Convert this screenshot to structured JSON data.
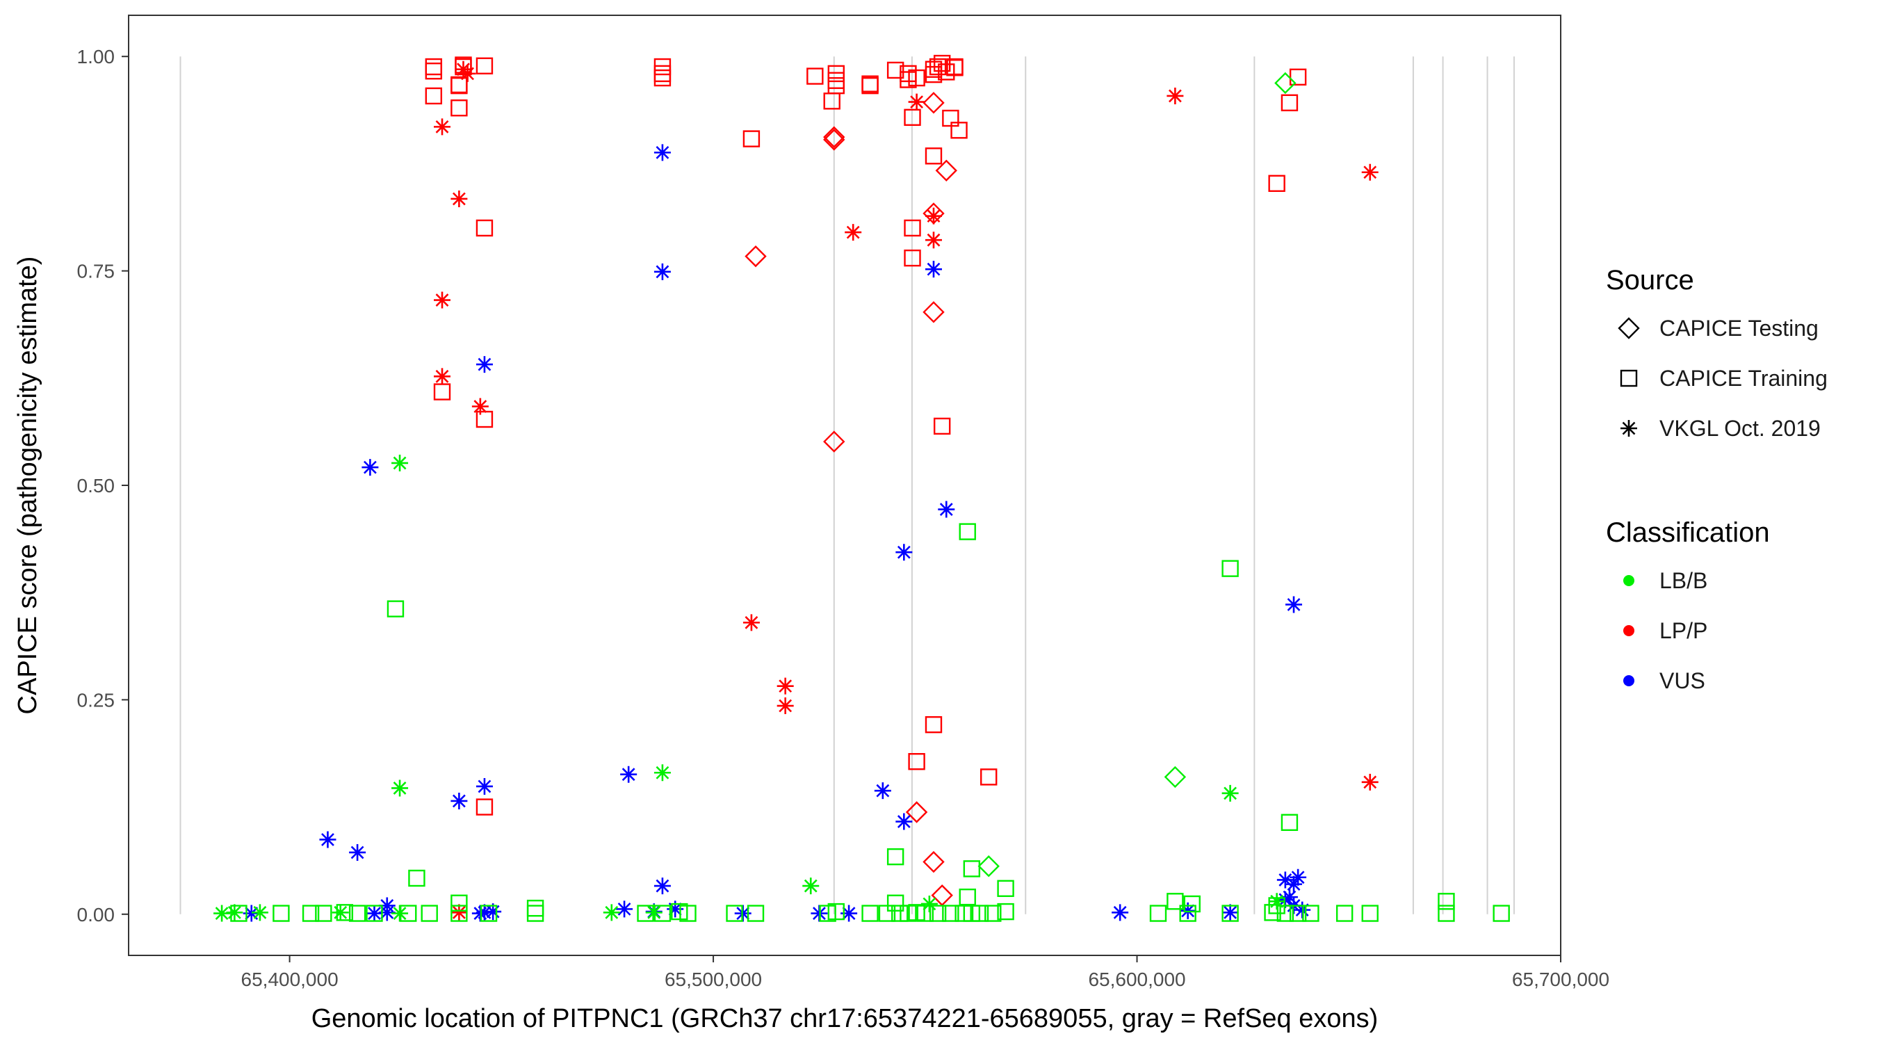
{
  "chart_data": {
    "type": "scatter",
    "title": "",
    "xlabel": "Genomic location of PITPNC1 (GRCh37 chr17:65374221-65689055, gray = RefSeq exons)",
    "ylabel": "CAPICE score (pathogenicity estimate)",
    "xlim": [
      65362000,
      65700000
    ],
    "ylim": [
      -0.048,
      1.048
    ],
    "x_ticks": [
      65400000,
      65500000,
      65600000,
      65700000
    ],
    "x_tick_labels": [
      "65,400,000",
      "65,500,000",
      "65,600,000",
      "65,700,000"
    ],
    "y_ticks": [
      0,
      0.25,
      0.5,
      0.75,
      1.0
    ],
    "y_tick_labels": [
      "0.00",
      "0.25",
      "0.50",
      "0.75",
      "1.00"
    ],
    "exon_lines": [
      65374221,
      65528500,
      65546900,
      65573700,
      65627700,
      65665200,
      65672200,
      65682700,
      65689000
    ],
    "grid": false,
    "legend": {
      "source": {
        "title": "Source",
        "entries": [
          {
            "key": "testing",
            "label": "CAPICE Testing",
            "shape": "diamond"
          },
          {
            "key": "training",
            "label": "CAPICE Training",
            "shape": "square"
          },
          {
            "key": "vkgl",
            "label": "VKGL Oct. 2019",
            "shape": "asterisk"
          }
        ]
      },
      "classification": {
        "title": "Classification",
        "entries": [
          {
            "key": "LB/B",
            "label": "LB/B",
            "color": "#00ee00"
          },
          {
            "key": "LP/P",
            "label": "LP/P",
            "color": "#ff0000"
          },
          {
            "key": "VUS",
            "label": "VUS",
            "color": "#0000ff"
          }
        ]
      }
    },
    "series": [
      {
        "name": "LP/P - CAPICE Training",
        "class": "LP/P",
        "source": "training",
        "x": [
          65434000,
          65440000,
          65441000,
          65446000,
          65434000,
          65434000,
          65440000,
          65440000,
          65446000,
          65436000,
          65446000,
          65441000,
          65488000,
          65488000,
          65488000,
          65509000,
          65524000,
          65529000,
          65529000,
          65529000,
          65528000,
          65537000,
          65537000,
          65543000,
          65546000,
          65546000,
          65548000,
          65553000,
          65554000,
          65555000,
          65557000,
          65557000,
          65552000,
          65552000,
          65556000,
          65558000,
          65547000,
          65552000,
          65547000,
          65547000,
          65554000,
          65552000,
          65548000,
          65565000,
          65636000,
          65638000,
          65633000,
          65446000
        ],
        "y": [
          0.988,
          0.966,
          0.988,
          0.989,
          0.954,
          0.983,
          0.967,
          0.94,
          0.8,
          0.609,
          0.577,
          0.99,
          0.988,
          0.98,
          0.975,
          0.904,
          0.977,
          0.98,
          0.972,
          0.966,
          0.948,
          0.968,
          0.966,
          0.984,
          0.98,
          0.973,
          0.975,
          0.988,
          0.992,
          0.982,
          0.988,
          0.987,
          0.979,
          0.985,
          0.928,
          0.914,
          0.929,
          0.884,
          0.8,
          0.765,
          0.569,
          0.221,
          0.178,
          0.16,
          0.946,
          0.976,
          0.852,
          0.125
        ]
      },
      {
        "name": "LP/P - VKGL Oct. 2019",
        "class": "LP/P",
        "source": "vkgl",
        "x": [
          65441000,
          65442000,
          65436000,
          65440000,
          65436000,
          65436000,
          65445000,
          65509000,
          65517000,
          65517000,
          65533000,
          65548000,
          65552000,
          65552000,
          65609000,
          65655000,
          65655000,
          65440000
        ],
        "y": [
          0.985,
          0.98,
          0.918,
          0.834,
          0.716,
          0.627,
          0.592,
          0.34,
          0.266,
          0.243,
          0.795,
          0.947,
          0.814,
          0.786,
          0.954,
          0.865,
          0.154,
          0.002
        ]
      },
      {
        "name": "LP/P - CAPICE Testing",
        "class": "LP/P",
        "source": "testing",
        "x": [
          65528500,
          65528500,
          65552000,
          65555000,
          65510000,
          65552000,
          65552000,
          65528500,
          65548000,
          65552000,
          65554000
        ],
        "y": [
          0.906,
          0.903,
          0.946,
          0.867,
          0.767,
          0.817,
          0.702,
          0.551,
          0.119,
          0.061,
          0.022
        ]
      },
      {
        "name": "VUS - VKGL Oct. 2019",
        "class": "VUS",
        "source": "vkgl",
        "x": [
          65488000,
          65488000,
          65552000,
          65446000,
          65419000,
          65555000,
          65545000,
          65637000,
          65480000,
          65446000,
          65440000,
          65540000,
          65545000,
          65409000,
          65416000,
          65488000,
          65423000,
          65635000,
          65638000,
          65637000,
          65635000,
          65636000,
          65391000,
          65420000,
          65423000,
          65446000,
          65448000,
          65445000,
          65479000,
          65486000,
          65491000,
          65507000,
          65525000,
          65532000,
          65596000,
          65612000,
          65622000,
          65639000,
          65637000
        ],
        "y": [
          0.888,
          0.749,
          0.752,
          0.641,
          0.521,
          0.472,
          0.422,
          0.361,
          0.163,
          0.149,
          0.132,
          0.144,
          0.108,
          0.087,
          0.072,
          0.033,
          0.01,
          0.04,
          0.043,
          0.035,
          0.017,
          0.02,
          0.001,
          0.001,
          0.002,
          0.002,
          0.003,
          0.001,
          0.006,
          0.003,
          0.006,
          0.001,
          0.001,
          0.001,
          0.002,
          0.004,
          0.002,
          0.005,
          0.01
        ]
      },
      {
        "name": "LB/B - VKGL Oct. 2019",
        "class": "LB/B",
        "source": "vkgl",
        "x": [
          65426000,
          65426000,
          65488000,
          65622000,
          65523000,
          65384000,
          65387000,
          65393000,
          65412000,
          65426000,
          65476000,
          65486000,
          65551000,
          65633000
        ],
        "y": [
          0.526,
          0.147,
          0.165,
          0.141,
          0.033,
          0.001,
          0.002,
          0.002,
          0.002,
          0.001,
          0.002,
          0.002,
          0.012,
          0.015
        ]
      },
      {
        "name": "LB/B - CAPICE Training",
        "class": "LB/B",
        "source": "training",
        "x": [
          65425000,
          65560000,
          65622000,
          65636000,
          65430000,
          65543000,
          65561000,
          65569000,
          65560000,
          65440000,
          65543000,
          65609000,
          65613000,
          65633000,
          65673000,
          65458000,
          65388000,
          65398000,
          65405000,
          65408000,
          65413000,
          65416000,
          65420000,
          65428000,
          65433000,
          65440000,
          65447000,
          65458000,
          65484000,
          65488000,
          65492000,
          65494000,
          65505000,
          65510000,
          65527000,
          65529000,
          65537000,
          65541000,
          65544000,
          65546000,
          65548000,
          65550000,
          65553000,
          65556000,
          65559000,
          65561000,
          65563000,
          65566000,
          65569000,
          65605000,
          65612000,
          65622000,
          65632000,
          65635000,
          65638000,
          65641000,
          65649000,
          65655000,
          65673000,
          65686000
        ],
        "y": [
          0.356,
          0.446,
          0.403,
          0.107,
          0.042,
          0.067,
          0.053,
          0.03,
          0.02,
          0.013,
          0.013,
          0.015,
          0.012,
          0.01,
          0.015,
          0.007,
          0.001,
          0.001,
          0.001,
          0.001,
          0.002,
          0.001,
          0.001,
          0.001,
          0.001,
          0.001,
          0.001,
          0.001,
          0.001,
          0.001,
          0.003,
          0.001,
          0.001,
          0.001,
          0.001,
          0.003,
          0.001,
          0.001,
          0.001,
          0.001,
          0.002,
          0.001,
          0.001,
          0.001,
          0.001,
          0.001,
          0.001,
          0.001,
          0.003,
          0.001,
          0.001,
          0.001,
          0.002,
          0.001,
          0.001,
          0.001,
          0.001,
          0.001,
          0.001,
          0.001
        ]
      },
      {
        "name": "LB/B - CAPICE Testing",
        "class": "LB/B",
        "source": "testing",
        "x": [
          65635000,
          65609000,
          65565000
        ],
        "y": [
          0.969,
          0.16,
          0.056
        ]
      }
    ]
  }
}
